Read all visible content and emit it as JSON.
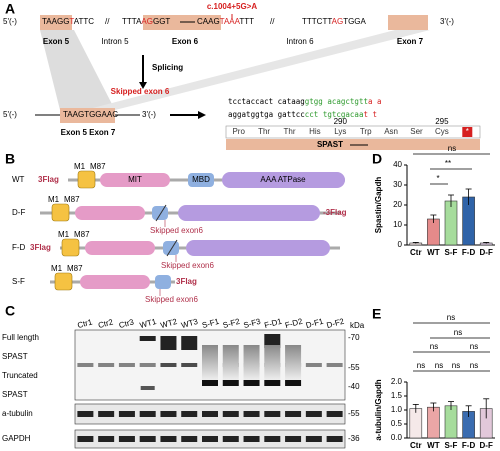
{
  "panel_a": {
    "label": "A",
    "mutation": "c.1004+5G>A",
    "left_end": "5'(-)",
    "right_end": "3'(-)",
    "genomic": [
      [
        {
          "text": "TAAGG",
          "color": "#000"
        },
        {
          "text": "T",
          "color": "#d62020"
        },
        {
          "text": "ATTC",
          "color": "#000"
        }
      ],
      [
        {
          "text": "TTTA",
          "color": "#000"
        },
        {
          "text": "AG",
          "color": "#d62020"
        },
        {
          "text": "GGT",
          "color": "#000"
        }
      ],
      [
        {
          "text": "CAAG",
          "color": "#000"
        },
        {
          "text": "TAAA",
          "color": "#d62020"
        },
        {
          "text": "TTT",
          "color": "#000"
        }
      ],
      [
        {
          "text": "TTTCTT",
          "color": "#000"
        },
        {
          "text": "AG",
          "color": "#d62020"
        },
        {
          "text": "TGGA",
          "color": "#000"
        }
      ]
    ],
    "gaps": [
      "//",
      "//"
    ],
    "regions": [
      "Exon 5",
      "Intron 5",
      "Exon 6",
      "Intron 6",
      "Exon 7"
    ],
    "splicing": "Splicing",
    "skipped": "Skipped exon 6",
    "spliced_left": "5'(-)",
    "spliced_seq": "TAAGTGGAAC",
    "spliced_right": "3'(-)",
    "spliced_label": "Exon 5 Exon 7",
    "seq1": [
      {
        "text": "tcctaccact cataag",
        "color": "#000"
      },
      {
        "text": "gtgg acagctgtt",
        "color": "#2e9a2e"
      },
      {
        "text": "a a",
        "color": "#d62020"
      }
    ],
    "seq2": [
      {
        "text": "aggatggtga gattcc",
        "color": "#000"
      },
      {
        "text": "cct tgtcgacaa",
        "color": "#2e9a2e"
      },
      {
        "text": "t t",
        "color": "#d62020"
      }
    ],
    "positions": [
      "290",
      "295"
    ],
    "amino_acids": [
      "Pro",
      "Thr",
      "Thr",
      "His",
      "Lys",
      "Trp",
      "Asn",
      "Ser",
      "Cys",
      "*"
    ],
    "protein": "SPAST"
  },
  "panel_b": {
    "label": "B",
    "constructs": [
      {
        "name": "WT",
        "tag": "3Flag",
        "m1": "M1",
        "m87": "M87",
        "domains": [
          "MIT",
          "MBD",
          "AAA ATPase"
        ]
      },
      {
        "name": "D-F",
        "tag": "-3Flag",
        "m1": "M1",
        "m87": "M87",
        "note": "Skipped exon6"
      },
      {
        "name": "F-D",
        "tag": "3Flag",
        "m1": "M1",
        "m87": "M87",
        "note": "Skipped exon6"
      },
      {
        "name": "S-F",
        "tag": "3Flag",
        "m1": "M1",
        "m87": "M87",
        "note": "Skipped exon6"
      }
    ]
  },
  "panel_c": {
    "label": "C",
    "lanes": [
      "Ctr1",
      "Ctr2",
      "Ctr3",
      "WT1",
      "WT2",
      "WT3",
      "S-F1",
      "S-F2",
      "S-F3",
      "F-D1",
      "F-D2",
      "D-F1",
      "D-F2"
    ],
    "left_labels": [
      "Full length",
      "SPAST",
      "Truncated",
      "SPAST"
    ],
    "unit": "kDa",
    "markers": [
      "-70",
      "-55",
      "-40"
    ],
    "tubulin": "a-tubulin",
    "tubulin_marker": "-55",
    "gapdh": "GAPDH",
    "gapdh_marker": "-36"
  },
  "chart_data": [
    {
      "type": "bar",
      "title": "D",
      "ylabel": "Spastin/Gapdh",
      "categories": [
        "Ctr",
        "WT",
        "S-F",
        "F-D",
        "D-F"
      ],
      "values": [
        1,
        13,
        22,
        24,
        1
      ],
      "errors": [
        0.3,
        2,
        3,
        4,
        0.3
      ],
      "colors": [
        "#f0e4e4",
        "#e58a8a",
        "#a6dc9c",
        "#2f63a8",
        "#dccbe2"
      ],
      "ylim": [
        0,
        40
      ],
      "yticks": [
        0,
        10,
        20,
        30,
        40
      ],
      "annotations": [
        "ns",
        "**",
        "*"
      ]
    },
    {
      "type": "bar",
      "title": "E",
      "ylabel": "a-tubulin/Gapdh",
      "categories": [
        "Ctr",
        "WT",
        "S-F",
        "F-D",
        "D-F"
      ],
      "values": [
        1.05,
        1.1,
        1.15,
        0.95,
        1.05
      ],
      "errors": [
        0.15,
        0.15,
        0.15,
        0.2,
        0.35
      ],
      "colors": [
        "#f5e9e9",
        "#eaa6a6",
        "#a6dc9c",
        "#3a6cb0",
        "#e2c8da"
      ],
      "ylim": [
        0,
        2
      ],
      "yticks": [
        {
          "value": 0,
          "label": "0.0"
        },
        {
          "value": 0.5,
          "label": "0.5"
        },
        {
          "value": 1,
          "label": "1.0"
        },
        {
          "value": 1.5,
          "label": "1.5"
        },
        {
          "value": 2,
          "label": "2.0"
        }
      ],
      "annotations": [
        "ns",
        "ns",
        "ns",
        "ns",
        "ns",
        "ns",
        "ns",
        "ns"
      ]
    }
  ]
}
